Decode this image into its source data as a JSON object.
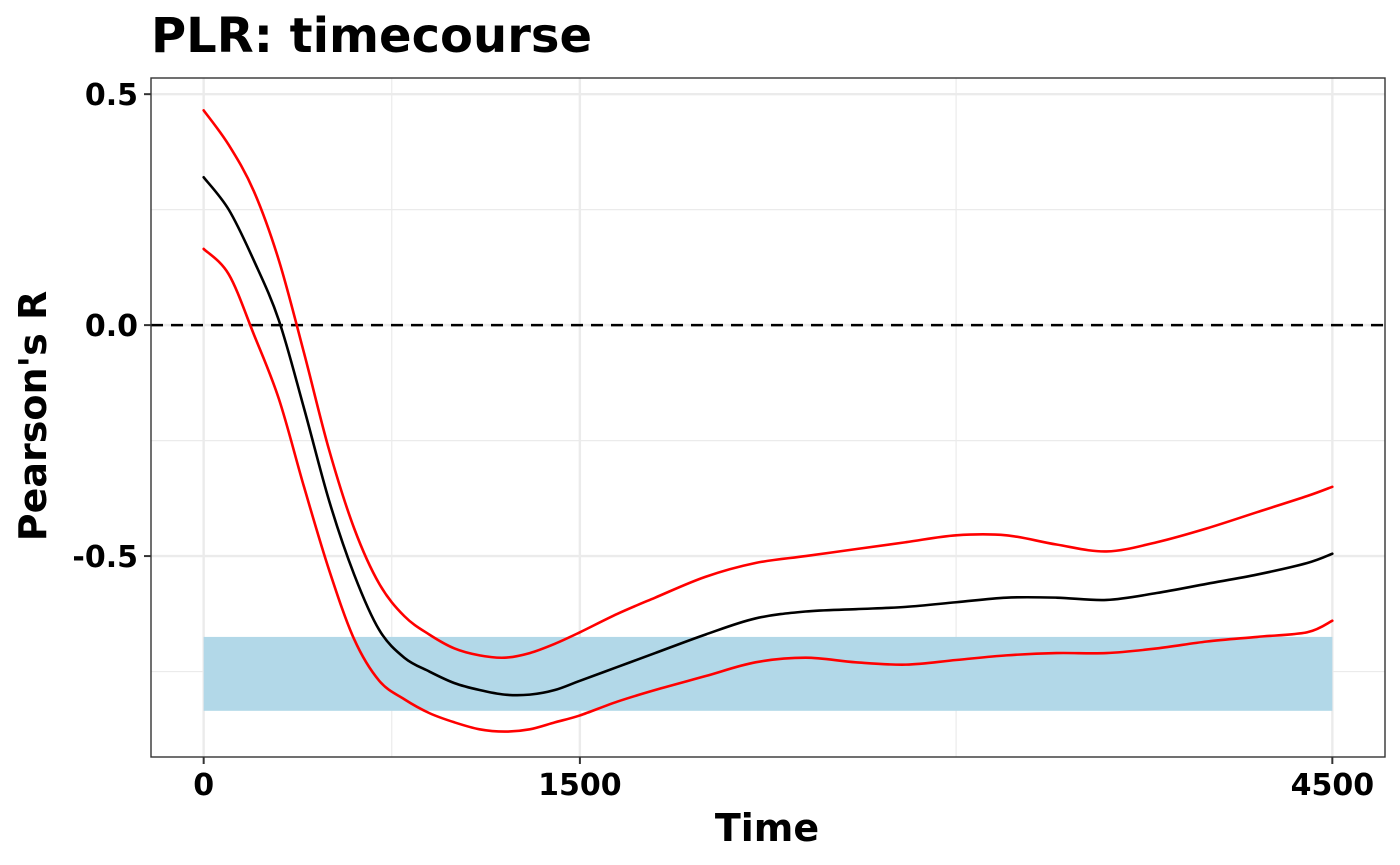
{
  "chart_data": {
    "type": "line",
    "title": "PLR: timecourse",
    "xlabel": "Time",
    "ylabel": "Pearson's R",
    "xlim": [
      -210,
      4710
    ],
    "ylim": [
      -0.935,
      0.535
    ],
    "x_ticks": [
      0,
      1500,
      4500
    ],
    "x_tick_labels": [
      "0",
      "1500",
      "4500"
    ],
    "y_ticks": [
      0.5,
      0.0,
      -0.5
    ],
    "y_tick_labels": [
      "0.5",
      "0.0",
      "-0.5"
    ],
    "grid": true,
    "reference_line": {
      "y": 0.0,
      "style": "dashed",
      "color": "#000000"
    },
    "highlight_band": {
      "x": [
        0,
        4500
      ],
      "y": [
        -0.835,
        -0.675
      ],
      "color": "#b2d8e8"
    },
    "x": [
      0,
      100,
      200,
      300,
      400,
      500,
      600,
      700,
      800,
      900,
      1000,
      1100,
      1200,
      1300,
      1400,
      1500,
      1650,
      1800,
      2000,
      2200,
      2400,
      2600,
      2800,
      3000,
      3200,
      3400,
      3600,
      3800,
      4000,
      4200,
      4400,
      4500
    ],
    "series": [
      {
        "color": "#000000",
        "values": [
          0.32,
          0.25,
          0.14,
          0.01,
          -0.18,
          -0.38,
          -0.54,
          -0.66,
          -0.72,
          -0.75,
          -0.775,
          -0.79,
          -0.8,
          -0.8,
          -0.79,
          -0.77,
          -0.74,
          -0.71,
          -0.67,
          -0.635,
          -0.62,
          -0.615,
          -0.61,
          -0.6,
          -0.59,
          -0.59,
          -0.595,
          -0.58,
          -0.56,
          -0.54,
          -0.515,
          -0.495
        ]
      },
      {
        "color": "#ff0000",
        "values": [
          0.465,
          0.39,
          0.29,
          0.14,
          -0.06,
          -0.27,
          -0.44,
          -0.56,
          -0.63,
          -0.67,
          -0.7,
          -0.715,
          -0.72,
          -0.71,
          -0.69,
          -0.665,
          -0.625,
          -0.59,
          -0.545,
          -0.515,
          -0.5,
          -0.485,
          -0.47,
          -0.455,
          -0.455,
          -0.475,
          -0.49,
          -0.47,
          -0.44,
          -0.405,
          -0.37,
          -0.35
        ]
      },
      {
        "color": "#ff0000",
        "values": [
          0.165,
          0.11,
          -0.02,
          -0.16,
          -0.35,
          -0.53,
          -0.68,
          -0.77,
          -0.81,
          -0.84,
          -0.86,
          -0.875,
          -0.88,
          -0.875,
          -0.86,
          -0.845,
          -0.815,
          -0.79,
          -0.76,
          -0.73,
          -0.72,
          -0.73,
          -0.735,
          -0.725,
          -0.715,
          -0.71,
          -0.71,
          -0.7,
          -0.685,
          -0.675,
          -0.665,
          -0.64
        ]
      }
    ]
  }
}
